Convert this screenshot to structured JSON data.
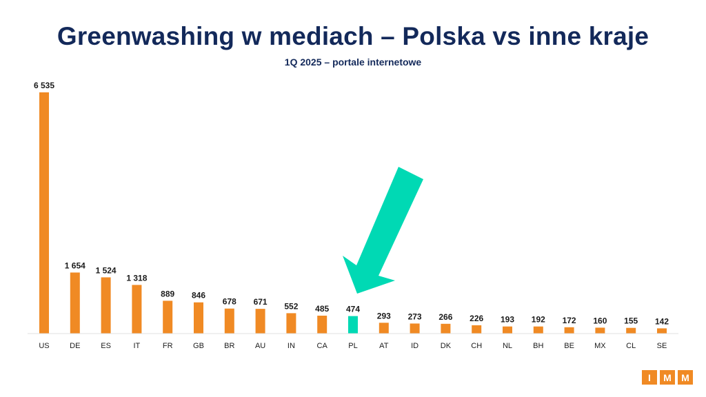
{
  "title": "Greenwashing w mediach – Polska vs inne kraje",
  "subtitle": "1Q 2025 – portale internetowe",
  "colors": {
    "title": "#13295a",
    "bar": "#f08a24",
    "highlight": "#00d9b4",
    "arrow": "#00d9b4"
  },
  "logo": {
    "letters": [
      "I",
      "M",
      "M"
    ]
  },
  "chart_data": {
    "type": "bar",
    "title": "Greenwashing w mediach – Polska vs inne kraje",
    "subtitle": "1Q 2025 – portale internetowe",
    "xlabel": "",
    "ylabel": "",
    "grid": false,
    "ylim": [
      0,
      6535
    ],
    "highlight": "PL",
    "categories": [
      "US",
      "DE",
      "ES",
      "IT",
      "FR",
      "GB",
      "BR",
      "AU",
      "IN",
      "CA",
      "PL",
      "AT",
      "ID",
      "DK",
      "CH",
      "NL",
      "BH",
      "BE",
      "MX",
      "CL",
      "SE"
    ],
    "values": [
      6535,
      1654,
      1524,
      1318,
      889,
      846,
      678,
      671,
      552,
      485,
      474,
      293,
      273,
      266,
      226,
      193,
      192,
      172,
      160,
      155,
      142
    ],
    "value_labels": [
      "6 535",
      "1 654",
      "1 524",
      "1 318",
      "889",
      "846",
      "678",
      "671",
      "552",
      "485",
      "474",
      "293",
      "273",
      "266",
      "226",
      "193",
      "192",
      "172",
      "160",
      "155",
      "142"
    ]
  }
}
